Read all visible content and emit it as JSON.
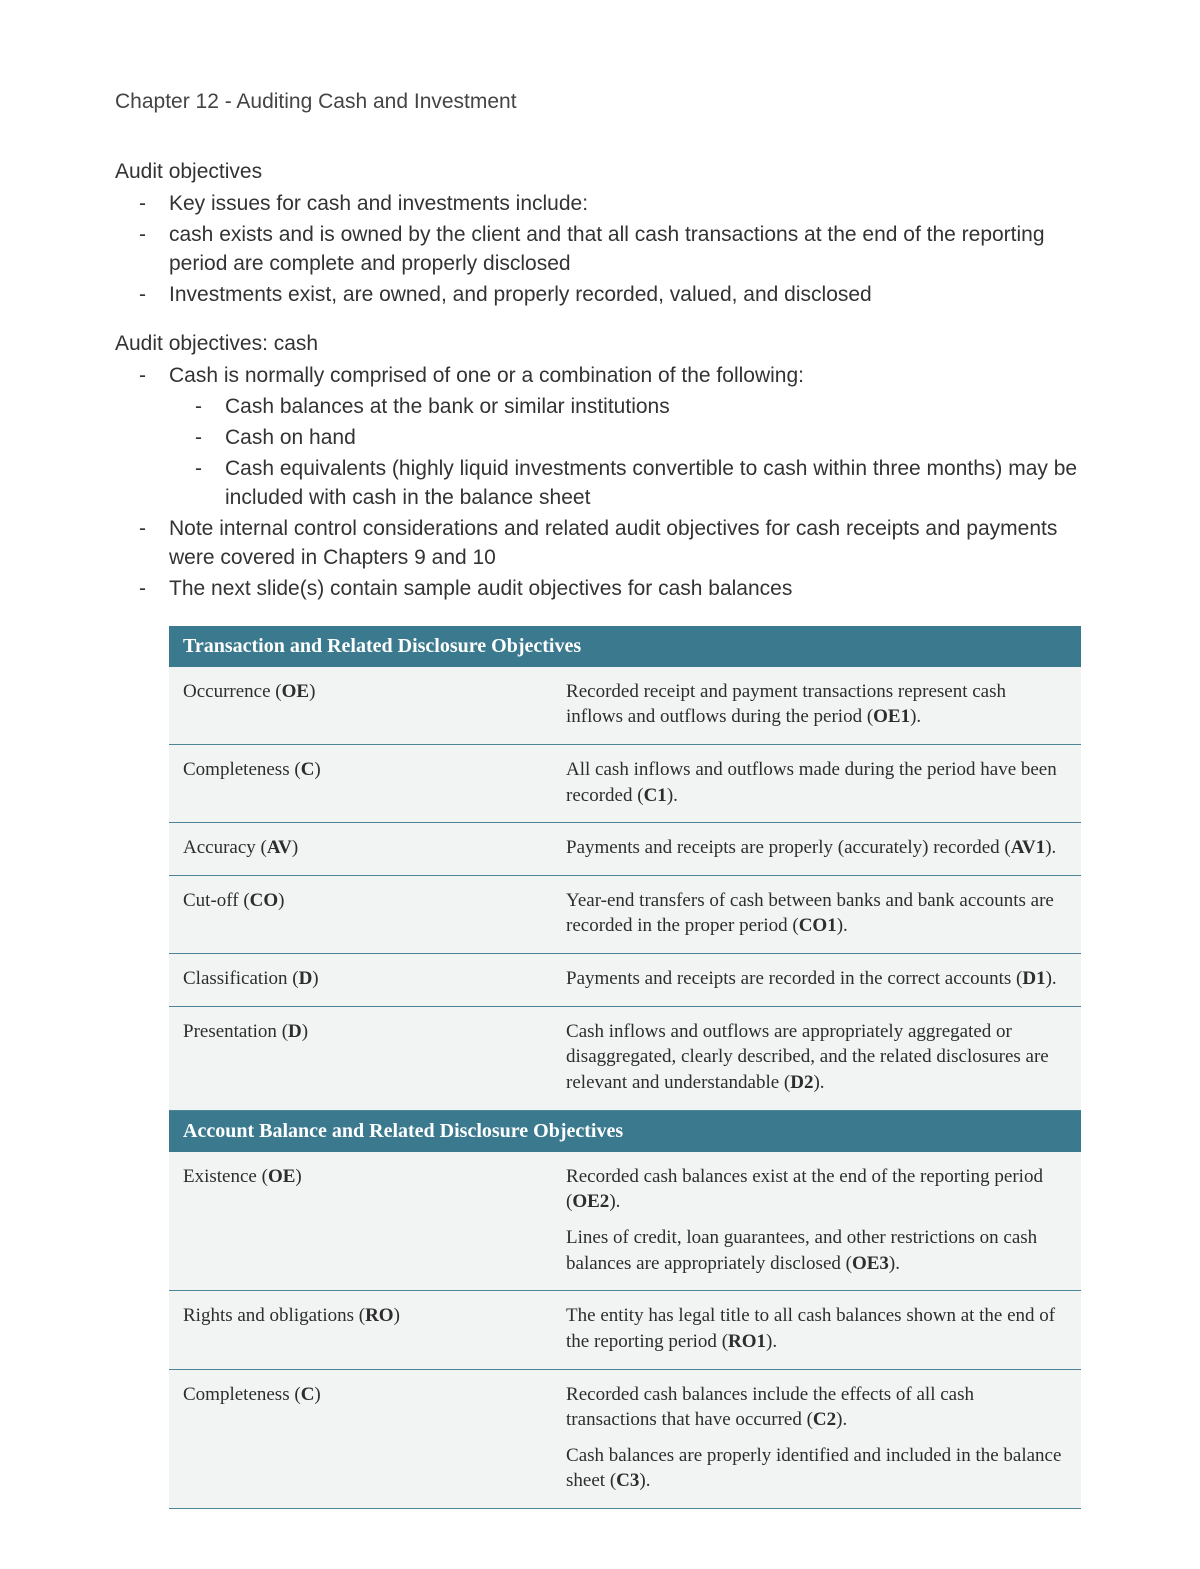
{
  "chapter_title": "Chapter 12 - Auditing Cash and Investment",
  "sections": [
    {
      "heading": "Audit objectives",
      "bullets": [
        {
          "text": "Key issues for cash and investments include:"
        },
        {
          "text": "cash exists and is owned by the client and that all cash transactions at the end of the reporting period are complete and properly disclosed"
        },
        {
          "text": "Investments exist, are owned, and properly recorded, valued, and disclosed"
        }
      ]
    },
    {
      "heading": "Audit objectives: cash",
      "bullets": [
        {
          "text": "Cash is normally comprised of one or a combination of the following:",
          "sub": [
            "Cash balances at the bank or similar institutions",
            "Cash on hand",
            "Cash equivalents (highly liquid investments convertible to cash within three months) may be included with cash in the balance sheet"
          ]
        },
        {
          "text": "Note internal control considerations and related audit objectives for cash receipts and payments were covered in Chapters 9 and 10"
        },
        {
          "text": "The next slide(s) contain sample audit objectives for cash balances"
        }
      ]
    }
  ],
  "table": {
    "header_bg": "#3b7a8e",
    "header_color": "#ffffff",
    "row_bg": "#f2f3f3",
    "row_border": "#4b8597",
    "font_family_table": "Georgia, 'Times New Roman', serif",
    "col1_width_pct": 42,
    "groups": [
      {
        "title": "Transaction and Related Disclosure Objectives",
        "rows": [
          {
            "label": "Occurrence",
            "code": "OE",
            "descs": [
              {
                "text": "Recorded receipt and payment transactions represent cash inflows and outflows during the period",
                "ref": "OE1"
              }
            ]
          },
          {
            "label": "Completeness",
            "code": "C",
            "descs": [
              {
                "text": "All cash inflows and outflows made during the period have been recorded",
                "ref": "C1"
              }
            ]
          },
          {
            "label": "Accuracy",
            "code": "AV",
            "descs": [
              {
                "text": "Payments and receipts are properly (accurately) recorded",
                "ref": "AV1"
              }
            ]
          },
          {
            "label": "Cut-off",
            "code": "CO",
            "descs": [
              {
                "text": "Year-end transfers of cash between banks and bank accounts are recorded in the proper period",
                "ref": "CO1"
              }
            ]
          },
          {
            "label": "Classification",
            "code": "D",
            "descs": [
              {
                "text": "Payments and receipts are recorded in the correct accounts",
                "ref": "D1"
              }
            ]
          },
          {
            "label": "Presentation",
            "code": "D",
            "descs": [
              {
                "text": "Cash inflows and outflows are appropriately aggregated or disaggregated, clearly described, and the related disclosures are relevant and understandable",
                "ref": "D2"
              }
            ]
          }
        ]
      },
      {
        "title": "Account Balance and Related Disclosure Objectives",
        "rows": [
          {
            "label": "Existence",
            "code": "OE",
            "descs": [
              {
                "text": "Recorded cash balances exist at the end of the reporting period",
                "ref": "OE2"
              },
              {
                "text": "Lines of credit, loan guarantees, and other restrictions on cash balances are appropriately disclosed",
                "ref": "OE3"
              }
            ]
          },
          {
            "label": "Rights and obligations",
            "code": "RO",
            "descs": [
              {
                "text": "The entity has legal title to all cash balances shown at the end of the reporting period",
                "ref": "RO1"
              }
            ]
          },
          {
            "label": "Completeness",
            "code": "C",
            "descs": [
              {
                "text": "Recorded cash balances include the effects of all cash transactions that have occurred",
                "ref": "C2"
              },
              {
                "text": "Cash balances are properly identified and included in the balance sheet",
                "ref": "C3"
              }
            ]
          }
        ]
      }
    ]
  }
}
